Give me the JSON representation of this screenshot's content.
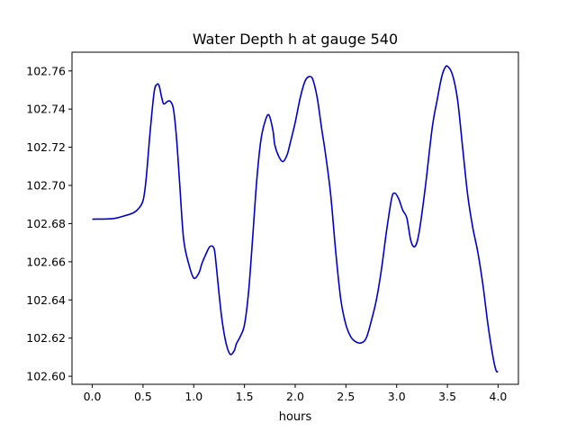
{
  "chart_data": {
    "type": "line",
    "title": "Water Depth h at gauge 540",
    "xlabel": "hours",
    "ylabel": "",
    "xlim": [
      -0.2,
      4.2
    ],
    "ylim": [
      102.5958,
      102.7698
    ],
    "xticks": [
      0.0,
      0.5,
      1.0,
      1.5,
      2.0,
      2.5,
      3.0,
      3.5,
      4.0
    ],
    "xtick_labels": [
      "0.0",
      "0.5",
      "1.0",
      "1.5",
      "2.0",
      "2.5",
      "3.0",
      "3.5",
      "4.0"
    ],
    "yticks": [
      102.6,
      102.62,
      102.64,
      102.66,
      102.68,
      102.7,
      102.72,
      102.74,
      102.76
    ],
    "ytick_labels": [
      "102.60",
      "102.62",
      "102.64",
      "102.66",
      "102.68",
      "102.70",
      "102.72",
      "102.74",
      "102.76"
    ],
    "grid": false,
    "series": [
      {
        "color": "#0000cc",
        "x": [
          0.0,
          0.2,
          0.3,
          0.4,
          0.45,
          0.5,
          0.53,
          0.57,
          0.61,
          0.64,
          0.66,
          0.68,
          0.7,
          0.72,
          0.74,
          0.77,
          0.8,
          0.83,
          0.86,
          0.9,
          0.95,
          1.0,
          1.05,
          1.08,
          1.12,
          1.16,
          1.2,
          1.22,
          1.25,
          1.28,
          1.32,
          1.36,
          1.4,
          1.42,
          1.46,
          1.5,
          1.54,
          1.58,
          1.62,
          1.66,
          1.7,
          1.74,
          1.78,
          1.8,
          1.84,
          1.88,
          1.92,
          1.95,
          2.0,
          2.05,
          2.1,
          2.15,
          2.18,
          2.22,
          2.26,
          2.3,
          2.35,
          2.4,
          2.45,
          2.5,
          2.55,
          2.6,
          2.65,
          2.7,
          2.75,
          2.8,
          2.85,
          2.9,
          2.95,
          2.98,
          3.02,
          3.06,
          3.1,
          3.14,
          3.18,
          3.22,
          3.28,
          3.35,
          3.4,
          3.44,
          3.47,
          3.5,
          3.55,
          3.6,
          3.65,
          3.7,
          3.75,
          3.8,
          3.85,
          3.9,
          3.95,
          3.98,
          4.0
        ],
        "y": [
          102.6823,
          102.6826,
          102.6838,
          102.6855,
          102.6875,
          102.692,
          102.703,
          102.728,
          102.749,
          102.753,
          102.752,
          102.747,
          102.743,
          102.743,
          102.744,
          102.744,
          102.74,
          102.725,
          102.702,
          102.672,
          102.659,
          102.6515,
          102.654,
          102.659,
          102.664,
          102.668,
          102.667,
          102.659,
          102.643,
          102.629,
          102.617,
          102.6115,
          102.6135,
          102.617,
          102.621,
          102.627,
          102.644,
          102.672,
          102.702,
          102.723,
          102.733,
          102.737,
          102.729,
          102.721,
          102.715,
          102.7125,
          102.716,
          102.722,
          102.733,
          102.746,
          102.755,
          102.757,
          102.7545,
          102.745,
          102.73,
          102.716,
          102.695,
          102.665,
          102.64,
          102.627,
          102.6205,
          102.618,
          102.6175,
          102.62,
          102.629,
          102.64,
          102.656,
          102.676,
          102.693,
          102.696,
          102.693,
          102.687,
          102.683,
          102.671,
          102.668,
          102.675,
          102.698,
          102.73,
          102.745,
          102.756,
          102.761,
          102.7625,
          102.758,
          102.745,
          102.72,
          102.695,
          102.678,
          102.665,
          102.648,
          102.627,
          102.61,
          102.603,
          102.6025
        ]
      }
    ]
  }
}
